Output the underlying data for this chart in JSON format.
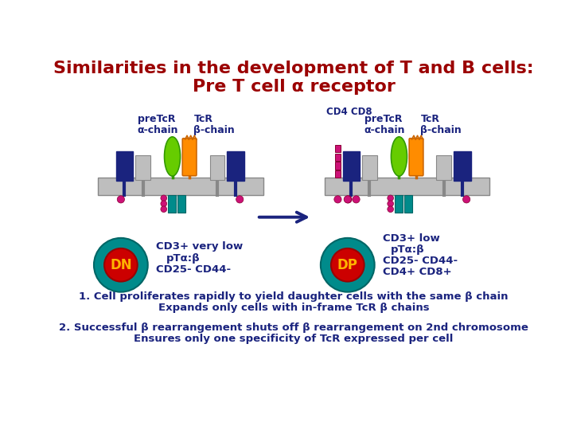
{
  "title_line1": "Similarities in the development of T and B cells:",
  "title_line2": "Pre T cell α receptor",
  "title_color": "#9B0000",
  "title_fontsize": 16,
  "dark_blue": "#1A237E",
  "light_gray": "#BEBEBE",
  "green_chain": "#66CC00",
  "orange_chain": "#FF8C00",
  "teal_cd3": "#008B8B",
  "magenta_dots": "#CC1177",
  "dn_outer": "#008B8B",
  "dn_inner": "#CC0000",
  "dn_text": "#FFB300",
  "dp_outer": "#008B8B",
  "dp_inner": "#CC0000",
  "dp_text": "#FFB300",
  "cd4_color": "#CC1177",
  "cd8_color": "#AA0000",
  "arrow_color": "#1A237E",
  "bg_color": "#FFFFFF",
  "note_fontsize": 9.5,
  "note1a": "1. Cell proliferates rapidly to yield daughter cells with the same β chain",
  "note1b": "Expands only cells with in-frame TcR β chains",
  "note2a": "2. Successful β rearrangement shuts off β rearrangement on 2nd chromosome",
  "note2b": "Ensures only one specificity of TcR expressed per cell"
}
